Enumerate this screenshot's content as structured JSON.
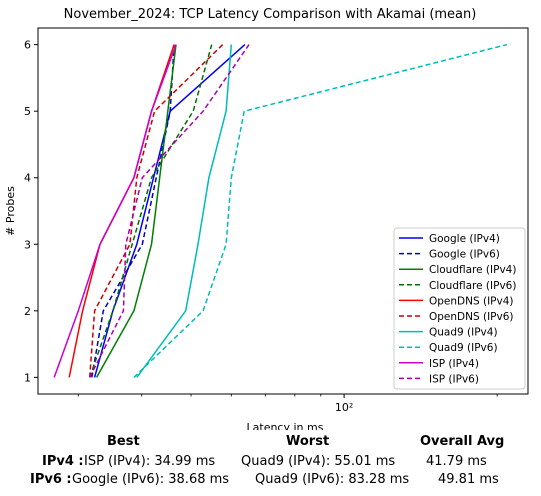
{
  "chart_data": {
    "type": "line",
    "title": "November_2024: TCP Latency Comparison with Akamai (mean)",
    "xlabel": "Latency in ms",
    "ylabel": "# Probes",
    "xscale": "log",
    "xlim": [
      25,
      230
    ],
    "ylim": [
      0.75,
      6.25
    ],
    "xticks": [
      {
        "value": 100,
        "label": "10²"
      }
    ],
    "yticks": [
      1,
      2,
      3,
      4,
      5,
      6
    ],
    "grid": false,
    "legend_position": "lower-right",
    "series": [
      {
        "name": "Google (IPv4)",
        "color": "#0000ff",
        "dash": false,
        "points": [
          [
            32.3,
            1
          ],
          [
            35.1,
            2
          ],
          [
            39.1,
            3
          ],
          [
            45.5,
            5
          ],
          [
            63.8,
            6
          ]
        ]
      },
      {
        "name": "Google (IPv6)",
        "color": "#0000bb",
        "dash": true,
        "points": [
          [
            31.9,
            1
          ],
          [
            33.6,
            2
          ],
          [
            40.1,
            3
          ],
          [
            45.5,
            5
          ],
          [
            46.3,
            6
          ]
        ]
      },
      {
        "name": "Cloudflare (IPv4)",
        "color": "#008000",
        "dash": false,
        "points": [
          [
            32.6,
            1
          ],
          [
            38.6,
            2
          ],
          [
            41.8,
            3
          ],
          [
            46.7,
            6
          ]
        ]
      },
      {
        "name": "Cloudflare (IPv6)",
        "color": "#007000",
        "dash": true,
        "points": [
          [
            31.6,
            1
          ],
          [
            35.1,
            2
          ],
          [
            41.8,
            4
          ],
          [
            50.5,
            5
          ],
          [
            54.9,
            6
          ]
        ]
      },
      {
        "name": "OpenDNS (IPv4)",
        "color": "#ff0000",
        "dash": false,
        "points": [
          [
            28.8,
            1
          ],
          [
            30.6,
            2
          ],
          [
            33.1,
            3
          ],
          [
            38.6,
            4
          ],
          [
            41.8,
            5
          ],
          [
            46.3,
            6
          ]
        ]
      },
      {
        "name": "OpenDNS (IPv6)",
        "color": "#cc0000",
        "dash": true,
        "points": [
          [
            31.6,
            1
          ],
          [
            32.3,
            2
          ],
          [
            37.9,
            3
          ],
          [
            39.1,
            4
          ],
          [
            42.4,
            5
          ],
          [
            57.7,
            6
          ]
        ]
      },
      {
        "name": "Quad9 (IPv4)",
        "color": "#00bbbb",
        "dash": false,
        "points": [
          [
            39.1,
            1
          ],
          [
            48.8,
            2
          ],
          [
            51.6,
            3
          ],
          [
            54.2,
            4
          ],
          [
            58.6,
            5
          ],
          [
            60.0,
            6
          ]
        ]
      },
      {
        "name": "Quad9 (IPv6)",
        "color": "#00bbbb",
        "dash": true,
        "points": [
          [
            38.6,
            1
          ],
          [
            52.8,
            2
          ],
          [
            58.6,
            3
          ],
          [
            60.0,
            4
          ],
          [
            63.6,
            5
          ],
          [
            209,
            6
          ]
        ]
      },
      {
        "name": "ISP (IPv4)",
        "color": "#cc00cc",
        "dash": false,
        "points": [
          [
            26.9,
            1
          ],
          [
            30.0,
            2
          ],
          [
            33.1,
            3
          ],
          [
            38.6,
            4
          ],
          [
            41.8,
            5
          ],
          [
            46.7,
            6
          ]
        ]
      },
      {
        "name": "ISP (IPv6)",
        "color": "#aa00aa",
        "dash": true,
        "points": [
          [
            31.6,
            1
          ],
          [
            36.8,
            2
          ],
          [
            37.2,
            3
          ],
          [
            40.1,
            4
          ],
          [
            52.8,
            5
          ],
          [
            65.0,
            6
          ]
        ]
      }
    ]
  },
  "summary": {
    "headers": {
      "best": "Best",
      "worst": "Worst",
      "avg": "Overall Avg"
    },
    "rows": [
      {
        "label": "IPv4 :",
        "best": "ISP (IPv4): 34.99 ms",
        "worst": "Quad9 (IPv4): 55.01 ms",
        "avg": "41.79 ms"
      },
      {
        "label": "IPv6 :",
        "best": "Google (IPv6): 38.68 ms",
        "worst": "Quad9 (IPv6): 83.28 ms",
        "avg": "49.81 ms"
      }
    ]
  }
}
